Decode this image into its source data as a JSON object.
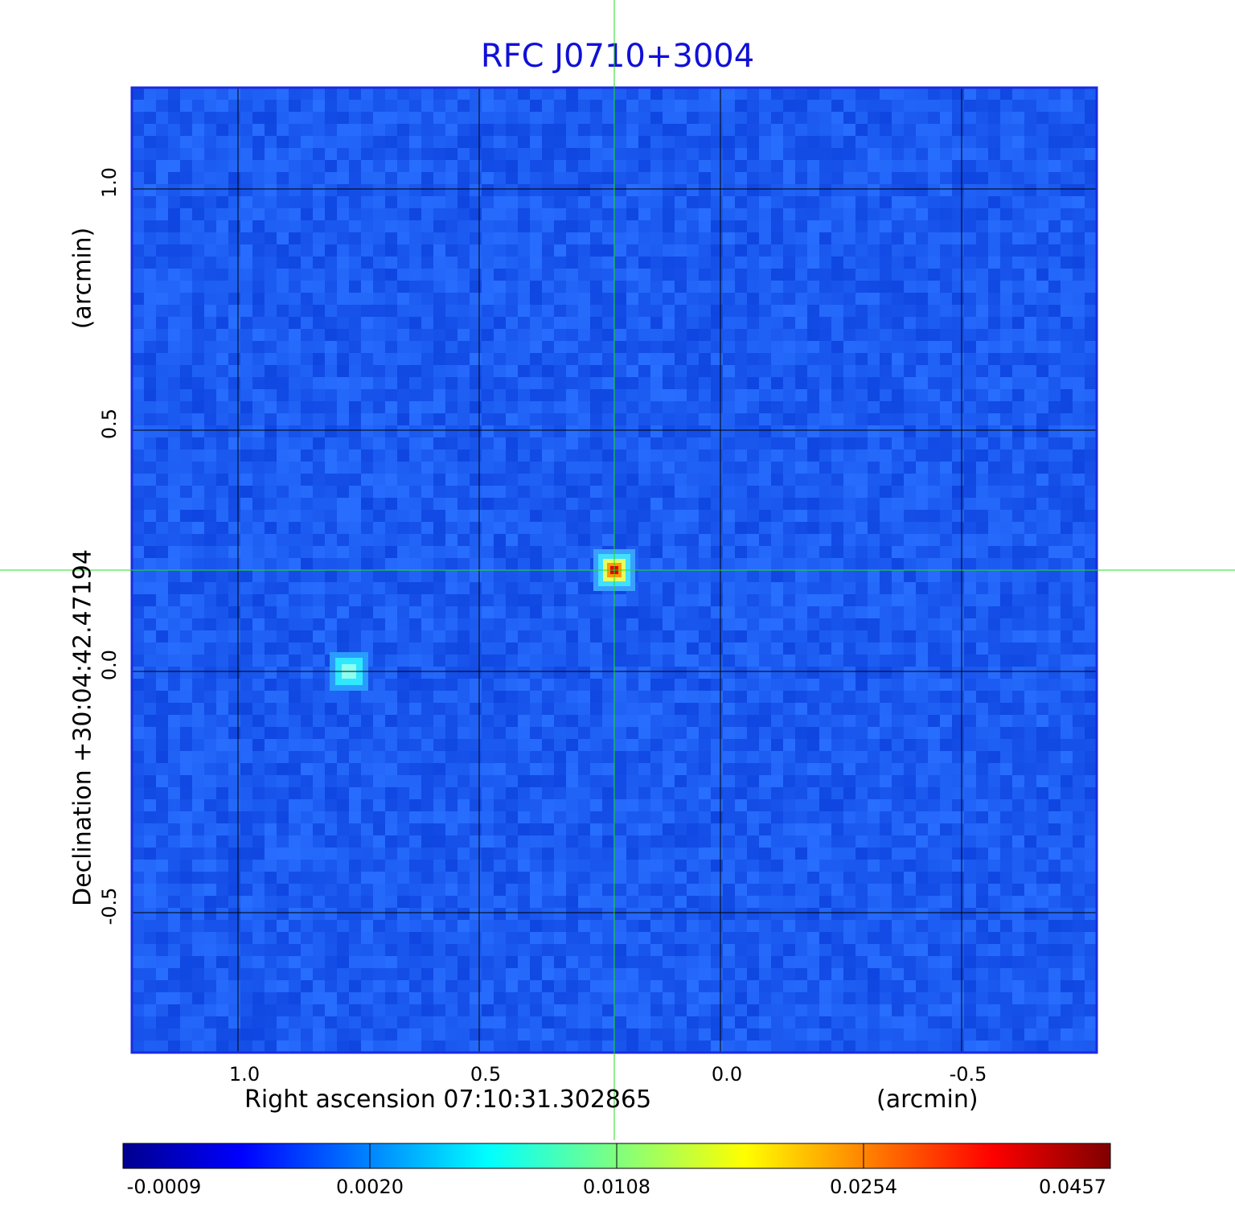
{
  "chart_data": {
    "type": "heatmap",
    "title": "RFC J0710+3004",
    "xlabel": "Right ascension  07:10:31.302865",
    "xunit": "(arcmin)",
    "ylabel": "Declination  +30:04:42.47194",
    "yunit": "(arcmin)",
    "xlim": [
      1.22,
      -0.78
    ],
    "ylim": [
      -0.79,
      1.21
    ],
    "x_ticks": [
      "1.0",
      "0.5",
      "0.0",
      "-0.5"
    ],
    "x_tick_values": [
      1.0,
      0.5,
      0.0,
      -0.5
    ],
    "y_ticks": [
      "1.0",
      "0.5",
      "0.0",
      "-0.5"
    ],
    "y_tick_values": [
      1.0,
      0.5,
      0.0,
      -0.5
    ],
    "grid": true,
    "crosshair": {
      "x": 0.22,
      "y": 0.21
    },
    "sources": [
      {
        "x": 0.22,
        "y": 0.21,
        "peak": 0.0457
      },
      {
        "x": 0.77,
        "y": 0.0,
        "peak": 0.005
      }
    ],
    "colorbar": {
      "ticks": [
        "-0.0009",
        "0.0020",
        "0.0108",
        "0.0254",
        "0.0457"
      ],
      "values": [
        -0.0009,
        0.002,
        0.0108,
        0.0254,
        0.0457
      ]
    },
    "colormap": "jet",
    "colors": {
      "background_pixel": "#1d5cf0",
      "grid": "#000000",
      "crosshair": "#22dd22",
      "frame": "#1a2be0",
      "title": "#1010d8"
    }
  }
}
